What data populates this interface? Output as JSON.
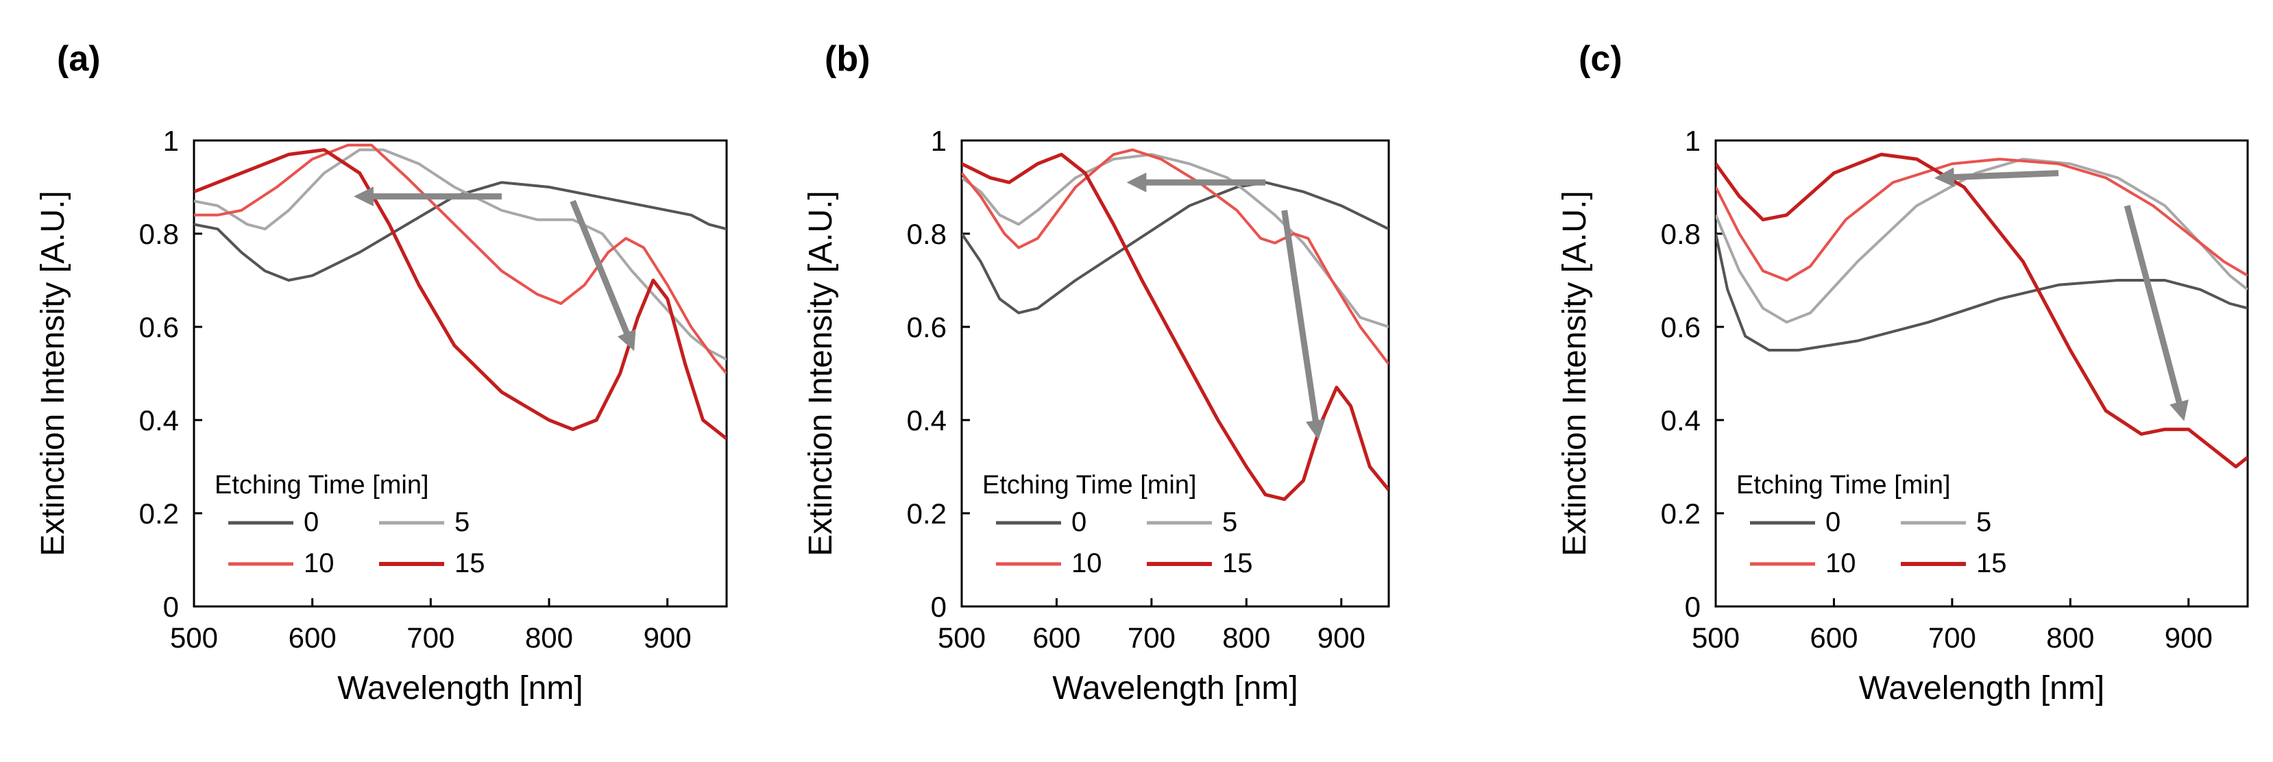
{
  "chart_data": [
    {
      "type": "line",
      "panel_label": "(a)",
      "xlabel": "Wavelength [nm]",
      "ylabel": "Extinction Intensity [A.U.]",
      "xlim": [
        500,
        950
      ],
      "ylim": [
        0,
        1
      ],
      "x_ticks": [
        "500",
        "600",
        "700",
        "800",
        "900"
      ],
      "y_ticks": [
        "0",
        "0.2",
        "0.4",
        "0.6",
        "0.8",
        "1"
      ],
      "legend_title": "Etching Time [min]",
      "legend": [
        "0",
        "5",
        "10",
        "15"
      ],
      "series": [
        {
          "name": "0",
          "color": "#555555",
          "points": [
            [
              500,
              0.82
            ],
            [
              520,
              0.81
            ],
            [
              540,
              0.76
            ],
            [
              560,
              0.72
            ],
            [
              580,
              0.7
            ],
            [
              600,
              0.71
            ],
            [
              640,
              0.76
            ],
            [
              680,
              0.82
            ],
            [
              720,
              0.88
            ],
            [
              760,
              0.91
            ],
            [
              800,
              0.9
            ],
            [
              840,
              0.88
            ],
            [
              880,
              0.86
            ],
            [
              920,
              0.84
            ],
            [
              935,
              0.82
            ],
            [
              950,
              0.81
            ]
          ]
        },
        {
          "name": "5",
          "color": "#a8a8a8",
          "points": [
            [
              500,
              0.87
            ],
            [
              520,
              0.86
            ],
            [
              545,
              0.82
            ],
            [
              560,
              0.81
            ],
            [
              580,
              0.85
            ],
            [
              610,
              0.93
            ],
            [
              640,
              0.98
            ],
            [
              660,
              0.98
            ],
            [
              690,
              0.95
            ],
            [
              720,
              0.9
            ],
            [
              760,
              0.85
            ],
            [
              790,
              0.83
            ],
            [
              820,
              0.83
            ],
            [
              845,
              0.8
            ],
            [
              870,
              0.72
            ],
            [
              895,
              0.65
            ],
            [
              920,
              0.58
            ],
            [
              935,
              0.55
            ],
            [
              950,
              0.53
            ]
          ]
        },
        {
          "name": "10",
          "color": "#e8534f",
          "points": [
            [
              500,
              0.84
            ],
            [
              520,
              0.84
            ],
            [
              540,
              0.85
            ],
            [
              570,
              0.9
            ],
            [
              600,
              0.96
            ],
            [
              630,
              0.99
            ],
            [
              650,
              0.99
            ],
            [
              680,
              0.92
            ],
            [
              720,
              0.82
            ],
            [
              760,
              0.72
            ],
            [
              790,
              0.67
            ],
            [
              810,
              0.65
            ],
            [
              830,
              0.69
            ],
            [
              850,
              0.76
            ],
            [
              865,
              0.79
            ],
            [
              880,
              0.77
            ],
            [
              900,
              0.69
            ],
            [
              920,
              0.6
            ],
            [
              940,
              0.53
            ],
            [
              950,
              0.5
            ]
          ]
        },
        {
          "name": "15",
          "color": "#c41e1e",
          "points": [
            [
              500,
              0.89
            ],
            [
              540,
              0.93
            ],
            [
              580,
              0.97
            ],
            [
              610,
              0.98
            ],
            [
              640,
              0.93
            ],
            [
              665,
              0.82
            ],
            [
              690,
              0.69
            ],
            [
              720,
              0.56
            ],
            [
              760,
              0.46
            ],
            [
              800,
              0.4
            ],
            [
              820,
              0.38
            ],
            [
              840,
              0.4
            ],
            [
              860,
              0.5
            ],
            [
              875,
              0.62
            ],
            [
              888,
              0.7
            ],
            [
              900,
              0.66
            ],
            [
              915,
              0.52
            ],
            [
              930,
              0.4
            ],
            [
              940,
              0.38
            ],
            [
              950,
              0.36
            ]
          ]
        }
      ],
      "annotations": [
        {
          "type": "arrow",
          "from": [
            760,
            0.88
          ],
          "to": [
            640,
            0.88
          ],
          "color": "#888888"
        },
        {
          "type": "arrow",
          "from": [
            820,
            0.87
          ],
          "to": [
            870,
            0.56
          ],
          "color": "#888888"
        }
      ]
    },
    {
      "type": "line",
      "panel_label": "(b)",
      "xlabel": "Wavelength [nm]",
      "ylabel": "Extinction Intensity [A.U.]",
      "xlim": [
        500,
        950
      ],
      "ylim": [
        0,
        1
      ],
      "x_ticks": [
        "500",
        "600",
        "700",
        "800",
        "900"
      ],
      "y_ticks": [
        "0",
        "0.2",
        "0.4",
        "0.6",
        "0.8",
        "1"
      ],
      "legend_title": "Etching Time [min]",
      "legend": [
        "0",
        "5",
        "10",
        "15"
      ],
      "series": [
        {
          "name": "0",
          "color": "#555555",
          "points": [
            [
              500,
              0.8
            ],
            [
              520,
              0.74
            ],
            [
              540,
              0.66
            ],
            [
              560,
              0.63
            ],
            [
              580,
              0.64
            ],
            [
              620,
              0.7
            ],
            [
              680,
              0.78
            ],
            [
              740,
              0.86
            ],
            [
              790,
              0.9
            ],
            [
              820,
              0.91
            ],
            [
              860,
              0.89
            ],
            [
              900,
              0.86
            ],
            [
              930,
              0.83
            ],
            [
              950,
              0.81
            ]
          ]
        },
        {
          "name": "5",
          "color": "#a8a8a8",
          "points": [
            [
              500,
              0.92
            ],
            [
              520,
              0.89
            ],
            [
              540,
              0.84
            ],
            [
              560,
              0.82
            ],
            [
              580,
              0.85
            ],
            [
              620,
              0.92
            ],
            [
              660,
              0.96
            ],
            [
              700,
              0.97
            ],
            [
              740,
              0.95
            ],
            [
              780,
              0.92
            ],
            [
              800,
              0.89
            ],
            [
              830,
              0.84
            ],
            [
              860,
              0.78
            ],
            [
              890,
              0.7
            ],
            [
              920,
              0.62
            ],
            [
              950,
              0.6
            ]
          ]
        },
        {
          "name": "10",
          "color": "#e8534f",
          "points": [
            [
              500,
              0.93
            ],
            [
              520,
              0.88
            ],
            [
              545,
              0.8
            ],
            [
              560,
              0.77
            ],
            [
              580,
              0.79
            ],
            [
              620,
              0.9
            ],
            [
              660,
              0.97
            ],
            [
              680,
              0.98
            ],
            [
              710,
              0.96
            ],
            [
              750,
              0.91
            ],
            [
              790,
              0.85
            ],
            [
              815,
              0.79
            ],
            [
              830,
              0.78
            ],
            [
              850,
              0.8
            ],
            [
              865,
              0.79
            ],
            [
              890,
              0.7
            ],
            [
              920,
              0.6
            ],
            [
              950,
              0.52
            ]
          ]
        },
        {
          "name": "15",
          "color": "#c41e1e",
          "points": [
            [
              500,
              0.95
            ],
            [
              530,
              0.92
            ],
            [
              550,
              0.91
            ],
            [
              580,
              0.95
            ],
            [
              605,
              0.97
            ],
            [
              630,
              0.93
            ],
            [
              660,
              0.82
            ],
            [
              690,
              0.7
            ],
            [
              730,
              0.55
            ],
            [
              770,
              0.4
            ],
            [
              800,
              0.3
            ],
            [
              820,
              0.24
            ],
            [
              840,
              0.23
            ],
            [
              860,
              0.27
            ],
            [
              880,
              0.4
            ],
            [
              895,
              0.47
            ],
            [
              910,
              0.43
            ],
            [
              930,
              0.3
            ],
            [
              950,
              0.25
            ]
          ]
        }
      ],
      "annotations": [
        {
          "type": "arrow",
          "from": [
            820,
            0.91
          ],
          "to": [
            680,
            0.91
          ],
          "color": "#888888"
        },
        {
          "type": "arrow",
          "from": [
            840,
            0.85
          ],
          "to": [
            875,
            0.37
          ],
          "color": "#888888"
        }
      ]
    },
    {
      "type": "line",
      "panel_label": "(c)",
      "xlabel": "Wavelength [nm]",
      "ylabel": "Extinction Intensity [A.U.]",
      "xlim": [
        500,
        950
      ],
      "ylim": [
        0,
        1
      ],
      "x_ticks": [
        "500",
        "600",
        "700",
        "800",
        "900"
      ],
      "y_ticks": [
        "0",
        "0.2",
        "0.4",
        "0.6",
        "0.8",
        "1"
      ],
      "legend_title": "Etching Time [min]",
      "legend": [
        "0",
        "5",
        "10",
        "15"
      ],
      "series": [
        {
          "name": "0",
          "color": "#555555",
          "points": [
            [
              500,
              0.8
            ],
            [
              510,
              0.68
            ],
            [
              525,
              0.58
            ],
            [
              545,
              0.55
            ],
            [
              570,
              0.55
            ],
            [
              620,
              0.57
            ],
            [
              680,
              0.61
            ],
            [
              740,
              0.66
            ],
            [
              790,
              0.69
            ],
            [
              840,
              0.7
            ],
            [
              880,
              0.7
            ],
            [
              910,
              0.68
            ],
            [
              935,
              0.65
            ],
            [
              950,
              0.64
            ]
          ]
        },
        {
          "name": "5",
          "color": "#a8a8a8",
          "points": [
            [
              500,
              0.84
            ],
            [
              520,
              0.72
            ],
            [
              540,
              0.64
            ],
            [
              560,
              0.61
            ],
            [
              580,
              0.63
            ],
            [
              620,
              0.74
            ],
            [
              670,
              0.86
            ],
            [
              720,
              0.93
            ],
            [
              760,
              0.96
            ],
            [
              800,
              0.95
            ],
            [
              840,
              0.92
            ],
            [
              880,
              0.86
            ],
            [
              910,
              0.78
            ],
            [
              935,
              0.71
            ],
            [
              950,
              0.68
            ]
          ]
        },
        {
          "name": "10",
          "color": "#e8534f",
          "points": [
            [
              500,
              0.9
            ],
            [
              520,
              0.8
            ],
            [
              540,
              0.72
            ],
            [
              560,
              0.7
            ],
            [
              580,
              0.73
            ],
            [
              610,
              0.83
            ],
            [
              650,
              0.91
            ],
            [
              700,
              0.95
            ],
            [
              740,
              0.96
            ],
            [
              790,
              0.95
            ],
            [
              830,
              0.92
            ],
            [
              870,
              0.86
            ],
            [
              900,
              0.8
            ],
            [
              930,
              0.74
            ],
            [
              950,
              0.71
            ]
          ]
        },
        {
          "name": "15",
          "color": "#c41e1e",
          "points": [
            [
              500,
              0.95
            ],
            [
              520,
              0.88
            ],
            [
              540,
              0.83
            ],
            [
              560,
              0.84
            ],
            [
              600,
              0.93
            ],
            [
              640,
              0.97
            ],
            [
              670,
              0.96
            ],
            [
              710,
              0.9
            ],
            [
              760,
              0.74
            ],
            [
              800,
              0.55
            ],
            [
              830,
              0.42
            ],
            [
              860,
              0.37
            ],
            [
              880,
              0.38
            ],
            [
              900,
              0.38
            ],
            [
              920,
              0.34
            ],
            [
              940,
              0.3
            ],
            [
              950,
              0.32
            ]
          ]
        }
      ],
      "annotations": [
        {
          "type": "arrow",
          "from": [
            790,
            0.93
          ],
          "to": [
            690,
            0.92
          ],
          "color": "#888888"
        },
        {
          "type": "arrow",
          "from": [
            848,
            0.86
          ],
          "to": [
            895,
            0.41
          ],
          "color": "#888888"
        }
      ]
    }
  ]
}
